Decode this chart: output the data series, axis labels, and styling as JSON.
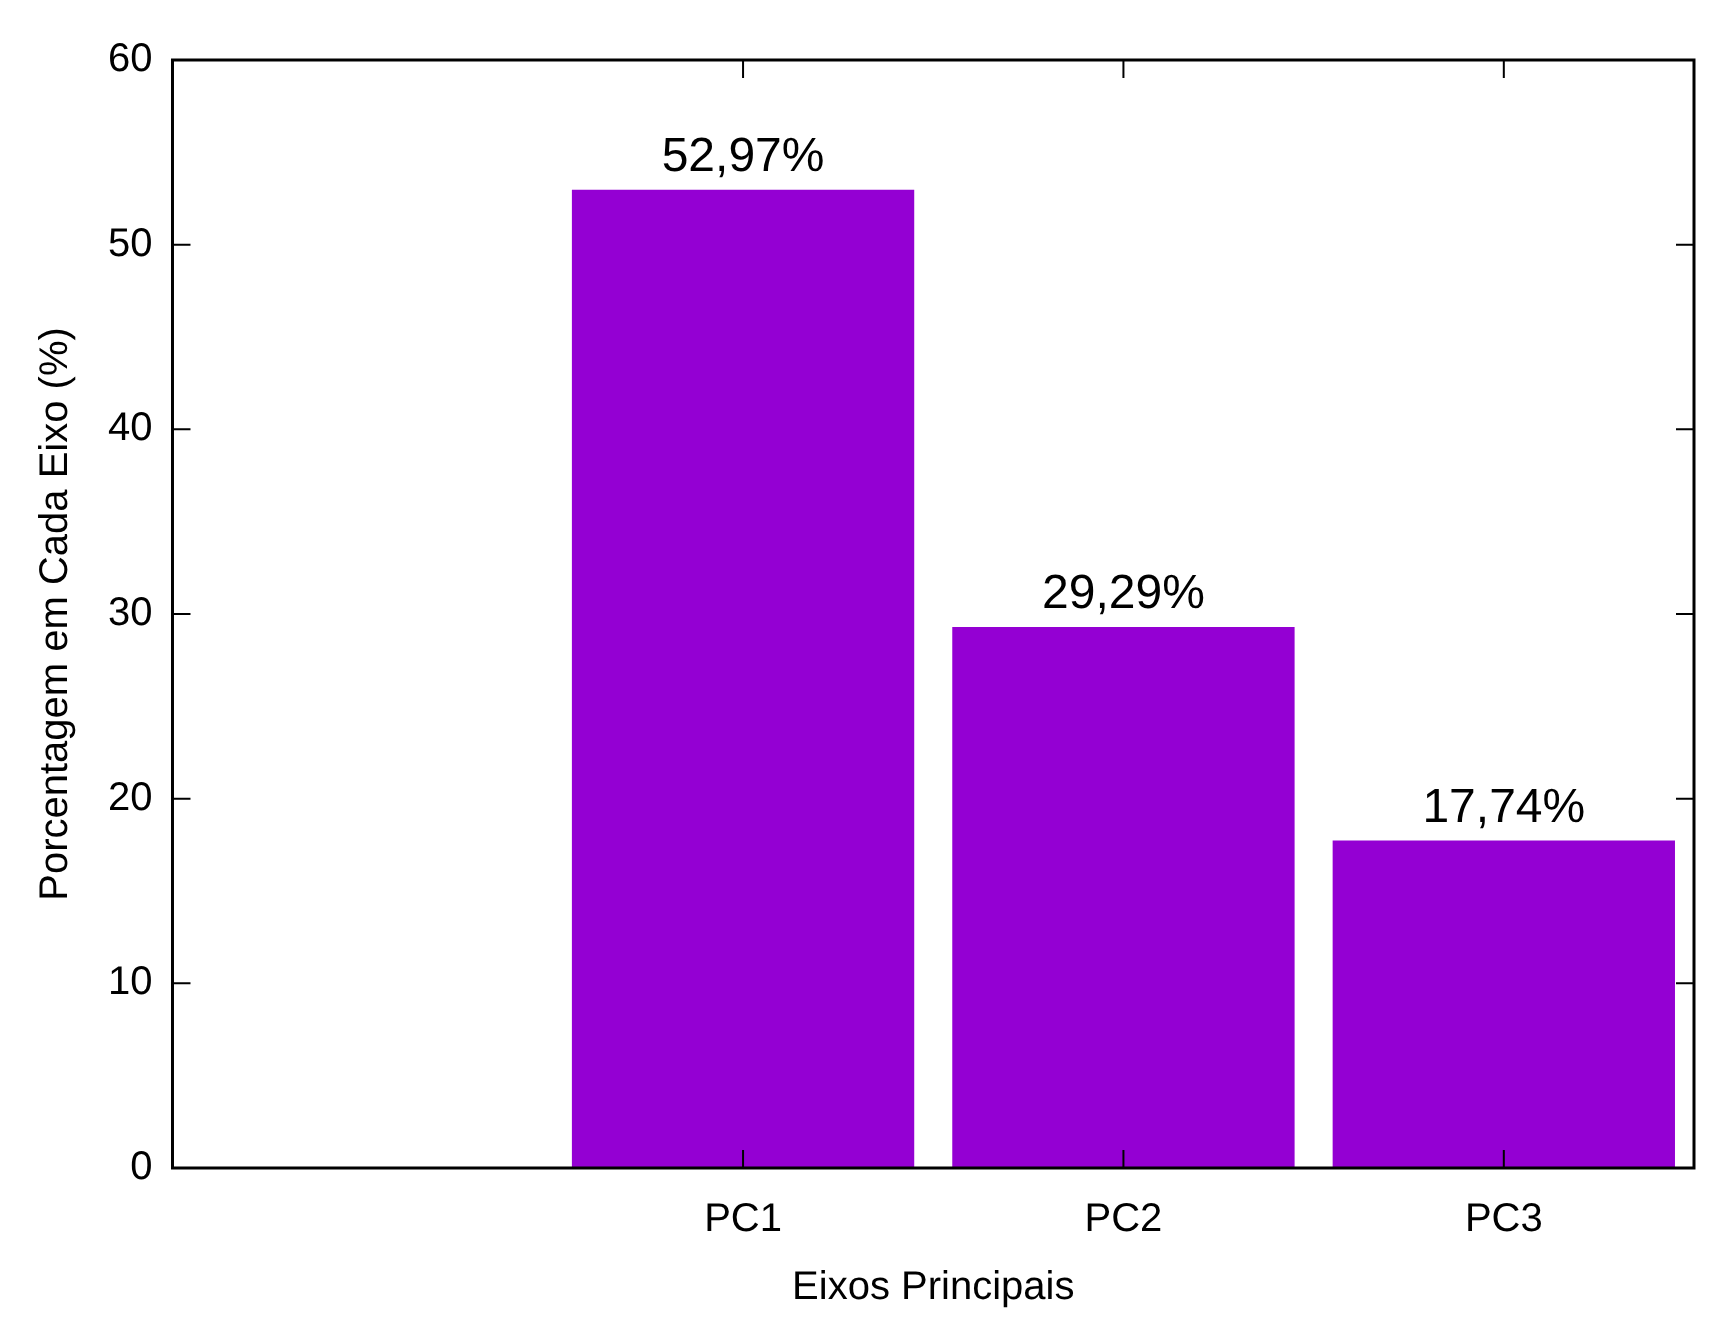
{
  "chart_data": {
    "type": "bar",
    "xlabel": "Eixos Principais",
    "ylabel": "Porcentagem em Cada Eixo (%)",
    "categories": [
      null,
      "PC1",
      "PC2",
      "PC3"
    ],
    "values": [
      null,
      52.97,
      29.29,
      17.74
    ],
    "value_labels": [
      null,
      "52,97%",
      "29,29%",
      "17,74%"
    ],
    "color": "#9400d3",
    "ylim": [
      0,
      60
    ],
    "yticks": [
      0,
      10,
      20,
      30,
      40,
      50,
      60
    ],
    "legend": false
  }
}
